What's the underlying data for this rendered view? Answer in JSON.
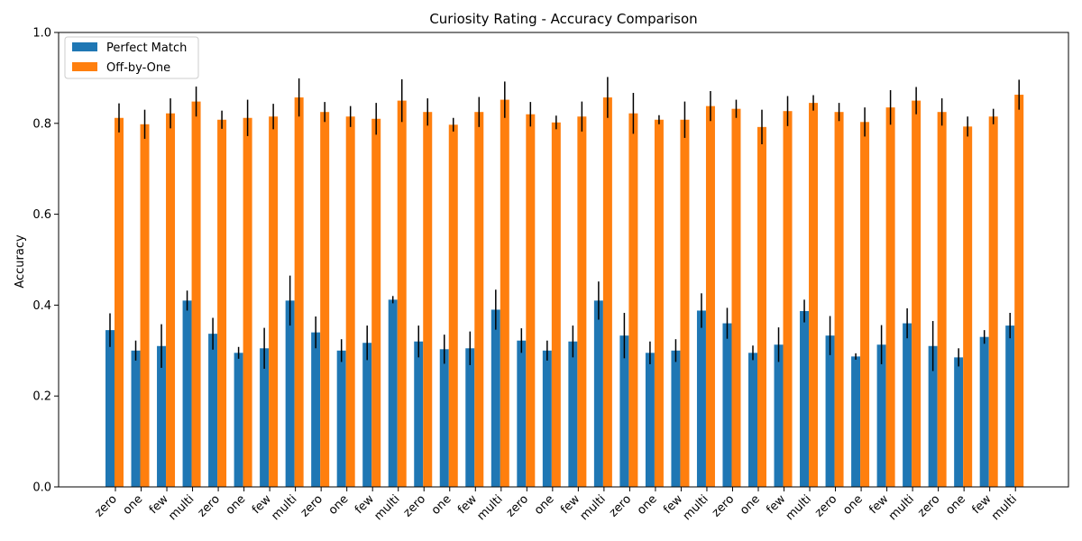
{
  "chart_data": {
    "type": "bar",
    "title": "Curiosity Rating - Accuracy Comparison",
    "xlabel": "",
    "ylabel": "Accuracy",
    "ylim": [
      0,
      1.0
    ],
    "yticks": [
      "0.0",
      "0.2",
      "0.4",
      "0.6",
      "0.8",
      "1.0"
    ],
    "legend_position": "top-left",
    "grid": false,
    "categories": [
      "zero",
      "one",
      "few",
      "multi",
      "zero",
      "one",
      "few",
      "multi",
      "zero",
      "one",
      "few",
      "multi",
      "zero",
      "one",
      "few",
      "multi",
      "zero",
      "one",
      "few",
      "multi",
      "zero",
      "one",
      "few",
      "multi",
      "zero",
      "one",
      "few",
      "multi",
      "zero",
      "one",
      "few",
      "multi",
      "zero",
      "one",
      "few",
      "multi"
    ],
    "series": [
      {
        "name": "Perfect Match",
        "color": "#1f77b4",
        "values": [
          0.345,
          0.3,
          0.31,
          0.41,
          0.337,
          0.295,
          0.305,
          0.41,
          0.34,
          0.3,
          0.317,
          0.412,
          0.32,
          0.303,
          0.305,
          0.39,
          0.322,
          0.3,
          0.32,
          0.41,
          0.333,
          0.295,
          0.3,
          0.388,
          0.36,
          0.295,
          0.313,
          0.387,
          0.333,
          0.287,
          0.313,
          0.36,
          0.31,
          0.285,
          0.33,
          0.355
        ],
        "errors": [
          0.037,
          0.022,
          0.048,
          0.022,
          0.035,
          0.013,
          0.045,
          0.055,
          0.035,
          0.025,
          0.038,
          0.008,
          0.035,
          0.032,
          0.037,
          0.044,
          0.027,
          0.022,
          0.035,
          0.042,
          0.05,
          0.025,
          0.025,
          0.038,
          0.034,
          0.016,
          0.038,
          0.025,
          0.043,
          0.007,
          0.043,
          0.033,
          0.055,
          0.02,
          0.015,
          0.028
        ]
      },
      {
        "name": "Off-by-One",
        "color": "#ff7f0e",
        "values": [
          0.812,
          0.798,
          0.822,
          0.848,
          0.808,
          0.812,
          0.815,
          0.857,
          0.825,
          0.815,
          0.81,
          0.85,
          0.825,
          0.797,
          0.825,
          0.852,
          0.82,
          0.802,
          0.815,
          0.857,
          0.822,
          0.808,
          0.808,
          0.838,
          0.832,
          0.792,
          0.827,
          0.845,
          0.825,
          0.803,
          0.835,
          0.85,
          0.825,
          0.793,
          0.815,
          0.863
        ],
        "errors": [
          0.032,
          0.032,
          0.033,
          0.033,
          0.02,
          0.04,
          0.028,
          0.042,
          0.022,
          0.023,
          0.035,
          0.047,
          0.03,
          0.015,
          0.033,
          0.04,
          0.027,
          0.015,
          0.033,
          0.045,
          0.045,
          0.01,
          0.04,
          0.033,
          0.02,
          0.038,
          0.033,
          0.017,
          0.02,
          0.032,
          0.038,
          0.03,
          0.03,
          0.022,
          0.017,
          0.033
        ]
      }
    ]
  }
}
